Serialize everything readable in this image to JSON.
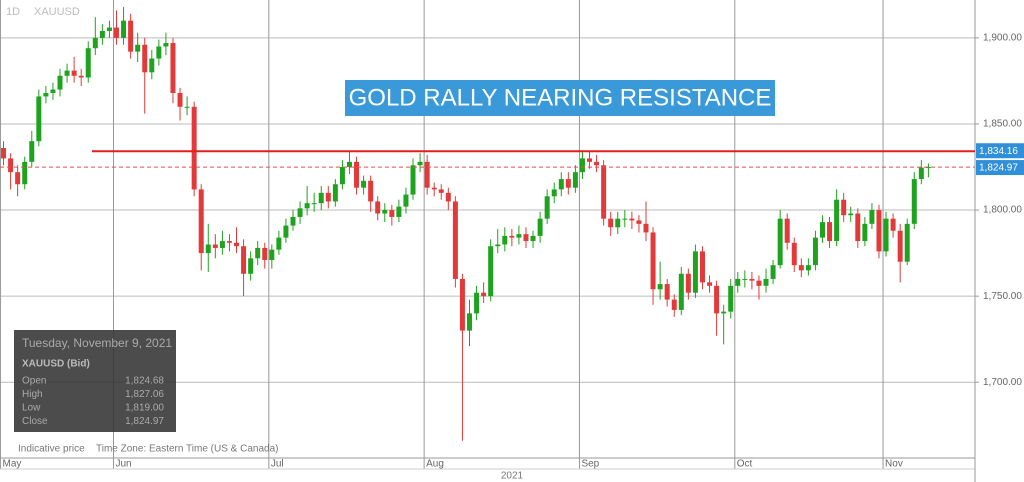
{
  "chart_data": {
    "type": "candlestick",
    "title": "GOLD RALLY NEARING RESISTANCE",
    "timeframe": "1D",
    "symbol": "XAUUSD",
    "year": "2021",
    "up_color": "#1fa31f",
    "down_color": "#e23a3a",
    "xlim": [
      -0.5,
      137.6
    ],
    "xticks": [
      {
        "value": 0,
        "label": "May"
      },
      {
        "value": 16,
        "label": "Jun"
      },
      {
        "value": 38,
        "label": "Jul"
      },
      {
        "value": 60,
        "label": "Aug"
      },
      {
        "value": 82,
        "label": "Sep"
      },
      {
        "value": 104,
        "label": "Oct"
      },
      {
        "value": 125,
        "label": "Nov"
      }
    ],
    "ylim": [
      1656,
      1922
    ],
    "yticks": [
      {
        "value": 1700,
        "label": "1,700.00"
      },
      {
        "value": 1750,
        "label": "1,750.00"
      },
      {
        "value": 1800,
        "label": "1,800.00"
      },
      {
        "value": 1850,
        "label": "1,850.00"
      },
      {
        "value": 1900,
        "label": "1,900.00"
      }
    ],
    "resistance": {
      "value": 1834.16,
      "label": "1,834.16"
    },
    "last_price": {
      "value": 1824.97,
      "label": "1,824.97"
    },
    "open": [
      1836,
      1830,
      1822,
      1815,
      1828,
      1840,
      1866,
      1868,
      1870,
      1878,
      1881,
      1878,
      1877,
      1894,
      1900,
      1904,
      1906,
      1900,
      1910,
      1892,
      1896,
      1880,
      1888,
      1895,
      1897,
      1868,
      1860,
      1860,
      1812,
      1775,
      1780,
      1778,
      1782,
      1781,
      1779,
      1763,
      1772,
      1778,
      1771,
      1777,
      1784,
      1791,
      1796,
      1801,
      1804,
      1804,
      1810,
      1805,
      1815,
      1825,
      1828,
      1813,
      1817,
      1805,
      1798,
      1800,
      1796,
      1802,
      1809,
      1826,
      1828,
      1813,
      1812,
      1810,
      1805,
      1760,
      1730,
      1740,
      1752,
      1750,
      1779,
      1780,
      1785,
      1784,
      1786,
      1782,
      1785,
      1795,
      1808,
      1812,
      1818,
      1813,
      1822,
      1830,
      1828,
      1826,
      1795,
      1790,
      1795,
      1795,
      1794,
      1792,
      1787,
      1754,
      1757,
      1748,
      1742,
      1763,
      1752,
      1776,
      1758,
      1756,
      1740,
      1741,
      1756,
      1760,
      1760,
      1759,
      1756,
      1760,
      1768,
      1795,
      1781,
      1768,
      1765,
      1768,
      1784,
      1793,
      1782,
      1806,
      1797,
      1798,
      1782,
      1792,
      1800,
      1776,
      1795,
      1788,
      1770,
      1792,
      1818,
      1824.68
    ],
    "high": [
      1840,
      1833,
      1826,
      1831,
      1846,
      1870,
      1872,
      1874,
      1882,
      1885,
      1889,
      1882,
      1898,
      1912,
      1908,
      1910,
      1916,
      1918,
      1914,
      1903,
      1900,
      1893,
      1899,
      1903,
      1900,
      1871,
      1866,
      1863,
      1815,
      1792,
      1786,
      1788,
      1786,
      1790,
      1783,
      1776,
      1782,
      1781,
      1780,
      1788,
      1795,
      1800,
      1805,
      1814,
      1810,
      1814,
      1814,
      1818,
      1829,
      1834,
      1831,
      1820,
      1820,
      1808,
      1804,
      1803,
      1806,
      1813,
      1830,
      1833,
      1832,
      1816,
      1815,
      1813,
      1808,
      1763,
      1748,
      1756,
      1758,
      1783,
      1789,
      1790,
      1789,
      1791,
      1790,
      1788,
      1799,
      1812,
      1816,
      1822,
      1822,
      1826,
      1834,
      1834,
      1832,
      1829,
      1799,
      1799,
      1800,
      1799,
      1797,
      1805,
      1790,
      1770,
      1760,
      1751,
      1767,
      1766,
      1780,
      1779,
      1762,
      1759,
      1745,
      1760,
      1764,
      1765,
      1764,
      1762,
      1766,
      1771,
      1800,
      1798,
      1784,
      1772,
      1772,
      1788,
      1797,
      1796,
      1812,
      1810,
      1802,
      1801,
      1796,
      1804,
      1803,
      1799,
      1798,
      1792,
      1795,
      1822,
      1829,
      1827.06
    ],
    "low": [
      1826,
      1812,
      1808,
      1812,
      1825,
      1837,
      1862,
      1864,
      1866,
      1874,
      1874,
      1872,
      1874,
      1890,
      1896,
      1900,
      1896,
      1896,
      1888,
      1886,
      1856,
      1876,
      1884,
      1890,
      1862,
      1852,
      1855,
      1808,
      1765,
      1764,
      1772,
      1774,
      1776,
      1775,
      1750,
      1759,
      1768,
      1766,
      1766,
      1774,
      1781,
      1788,
      1792,
      1797,
      1799,
      1800,
      1801,
      1802,
      1812,
      1821,
      1809,
      1809,
      1799,
      1794,
      1793,
      1791,
      1793,
      1798,
      1806,
      1822,
      1809,
      1808,
      1806,
      1800,
      1755,
      1666,
      1721,
      1736,
      1746,
      1747,
      1775,
      1776,
      1779,
      1780,
      1778,
      1778,
      1781,
      1792,
      1804,
      1808,
      1809,
      1810,
      1818,
      1824,
      1822,
      1791,
      1785,
      1786,
      1790,
      1789,
      1787,
      1782,
      1745,
      1748,
      1744,
      1738,
      1739,
      1748,
      1749,
      1754,
      1752,
      1727,
      1722,
      1737,
      1752,
      1755,
      1754,
      1748,
      1752,
      1757,
      1766,
      1777,
      1764,
      1761,
      1762,
      1765,
      1781,
      1778,
      1779,
      1793,
      1793,
      1778,
      1779,
      1789,
      1772,
      1773,
      1784,
      1758,
      1768,
      1789,
      1815,
      1819
    ],
    "close": [
      1830,
      1822,
      1815,
      1828,
      1840,
      1866,
      1868,
      1870,
      1878,
      1881,
      1878,
      1877,
      1894,
      1900,
      1904,
      1906,
      1900,
      1910,
      1892,
      1896,
      1880,
      1888,
      1895,
      1897,
      1868,
      1860,
      1860,
      1812,
      1775,
      1780,
      1778,
      1782,
      1781,
      1779,
      1763,
      1772,
      1778,
      1771,
      1777,
      1784,
      1791,
      1796,
      1801,
      1804,
      1804,
      1810,
      1805,
      1815,
      1825,
      1828,
      1813,
      1817,
      1805,
      1798,
      1800,
      1796,
      1802,
      1809,
      1826,
      1828,
      1813,
      1812,
      1810,
      1805,
      1760,
      1730,
      1740,
      1752,
      1750,
      1779,
      1780,
      1785,
      1784,
      1786,
      1782,
      1785,
      1795,
      1808,
      1812,
      1818,
      1813,
      1822,
      1830,
      1828,
      1826,
      1795,
      1790,
      1795,
      1795,
      1794,
      1792,
      1787,
      1754,
      1757,
      1748,
      1742,
      1763,
      1752,
      1776,
      1758,
      1756,
      1740,
      1741,
      1756,
      1760,
      1760,
      1759,
      1756,
      1760,
      1768,
      1795,
      1781,
      1768,
      1765,
      1768,
      1784,
      1793,
      1782,
      1806,
      1797,
      1798,
      1782,
      1792,
      1800,
      1776,
      1795,
      1788,
      1770,
      1792,
      1818,
      1824.68,
      1824.97
    ],
    "info_box": {
      "date": "Tuesday, November 9, 2021",
      "instrument": "XAUUSD (Bid)",
      "rows": [
        [
          "Open",
          "1,824.68"
        ],
        [
          "High",
          "1,827.06"
        ],
        [
          "Low",
          "1,819.00"
        ],
        [
          "Close",
          "1,824.97"
        ]
      ]
    },
    "footer": [
      "Indicative price",
      "Time Zone: Eastern Time (US & Canada)"
    ]
  }
}
